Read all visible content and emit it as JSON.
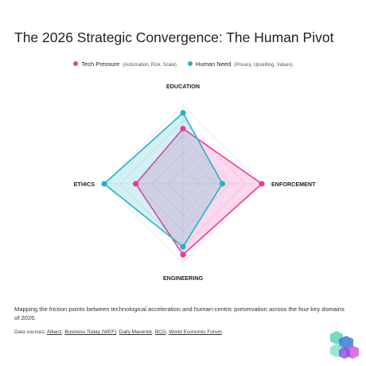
{
  "title": "The 2026 Strategic Convergence: The Human Pivot",
  "legend": [
    {
      "label": "Tech Pressure",
      "detail": "(Automation, Risk, Scale)",
      "color": "#ec3a9c"
    },
    {
      "label": "Human Need",
      "detail": "(Privacy, Upskilling, Values)",
      "color": "#22b3c9"
    }
  ],
  "chart_data": {
    "type": "radar",
    "axes": [
      "EDUCATION",
      "ENFORCEMENT",
      "ENGINEERING",
      "ETHICS"
    ],
    "range": [
      0,
      100
    ],
    "grid": true,
    "series": [
      {
        "name": "Tech Pressure",
        "color": "#ec3a9c",
        "values": [
          70,
          100,
          90,
          60
        ]
      },
      {
        "name": "Human Need",
        "color": "#22b3c9",
        "values": [
          90,
          50,
          80,
          100
        ]
      }
    ]
  },
  "caption": "Mapping the friction points between technological acceleration and human-centric preservation across the four key domains of 2026.",
  "sources": {
    "prefix": "Data sources:",
    "links": [
      "Allianz",
      "Business Today (WEF)",
      "Daily Maverick",
      "BCG",
      "World Economic Forum"
    ]
  }
}
